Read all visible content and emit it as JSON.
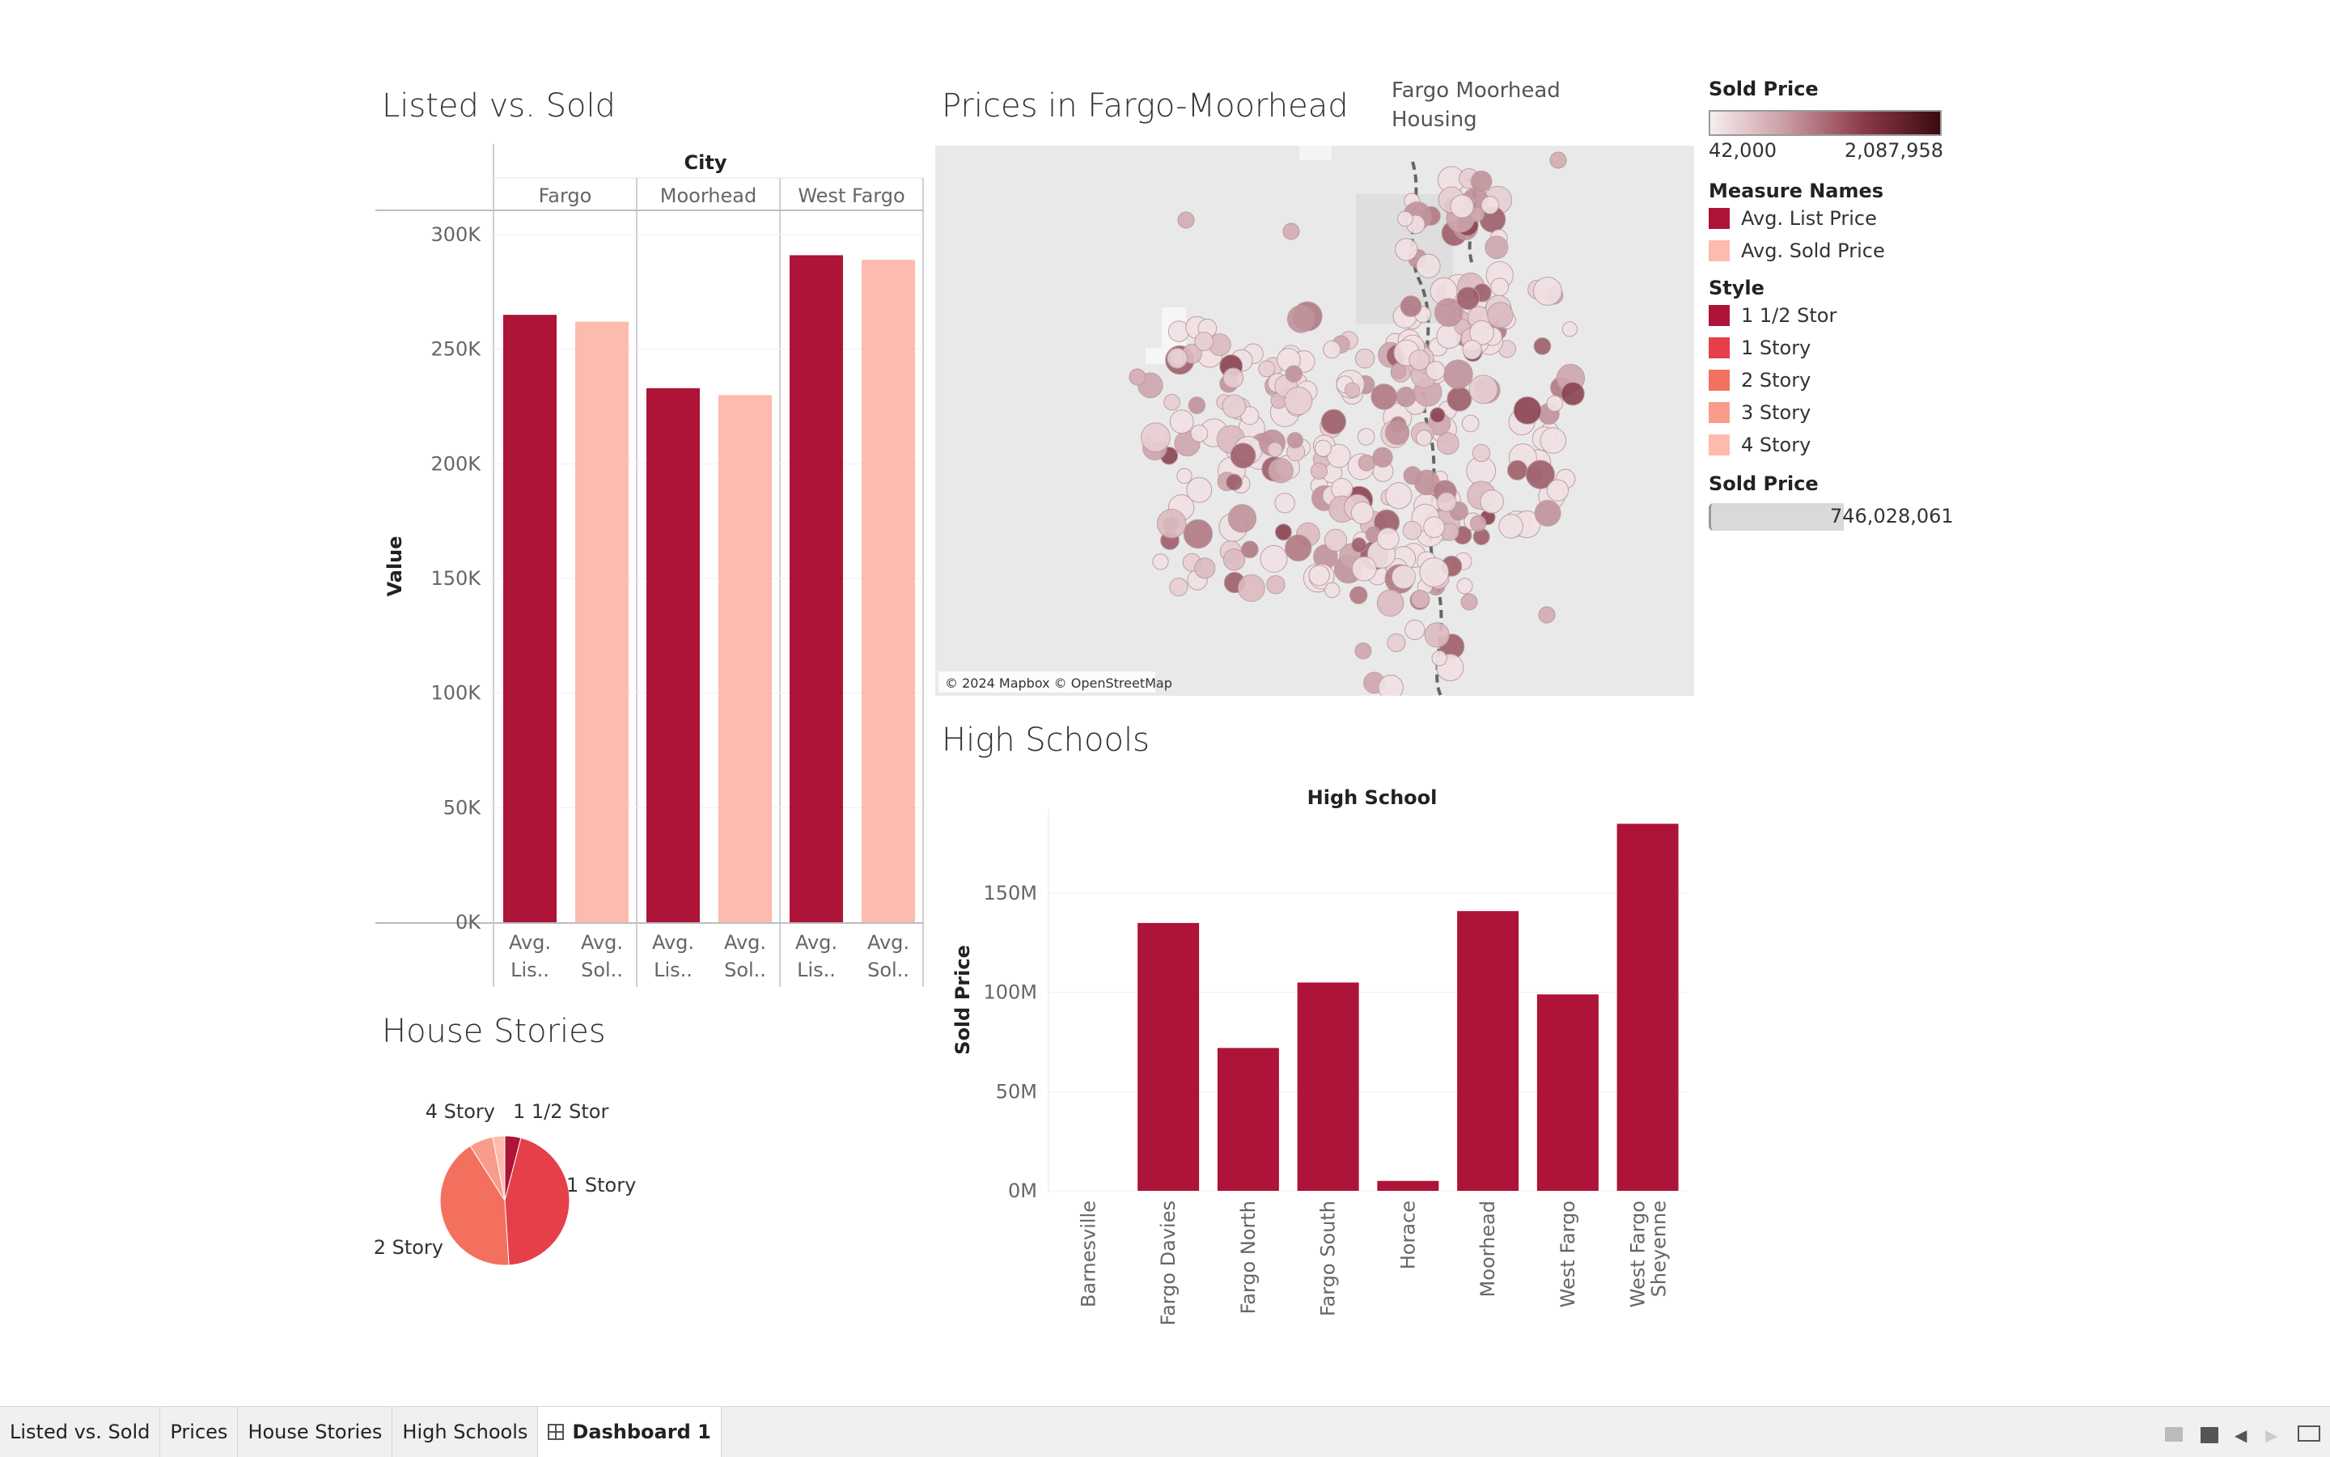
{
  "listed_vs_sold": {
    "title": "Listed vs. Sold",
    "column_header": "City",
    "ylabel": "Value",
    "bar_label_prefix": [
      "Avg.",
      "Avg."
    ],
    "bar_label_suffix": [
      "Lis..",
      "Sol.."
    ]
  },
  "prices_map": {
    "title": "Prices in Fargo-Moorhead",
    "subtitle_line1": "Fargo Moorhead",
    "subtitle_line2": "Housing",
    "attribution": "© 2024 Mapbox © OpenStreetMap"
  },
  "legend": {
    "sold_price_title": "Sold Price",
    "gradient_min": "42,000",
    "gradient_max": "2,087,958",
    "measure_names_title": "Measure Names",
    "measure_names": [
      {
        "label": "Avg. List Price",
        "color": "#ad1438"
      },
      {
        "label": "Avg. Sold Price",
        "color": "#fcbbad"
      }
    ],
    "style_title": "Style",
    "styles": [
      {
        "label": "1 1/2 Stor",
        "color": "#ad1438"
      },
      {
        "label": "1 Story",
        "color": "#e5404a"
      },
      {
        "label": "2 Story",
        "color": "#f4705e"
      },
      {
        "label": "3 Story",
        "color": "#fa9c8b"
      },
      {
        "label": "4 Story",
        "color": "#fcbbad"
      }
    ],
    "sold_price_size_title": "Sold Price",
    "sold_price_size_value": "746,028,061"
  },
  "house_stories": {
    "title": "House Stories"
  },
  "high_schools": {
    "title": "High Schools",
    "column_header": "High School"
  },
  "tabs": [
    "Listed vs. Sold",
    "Prices",
    "House Stories",
    "High Schools",
    "Dashboard 1"
  ],
  "chart_data": [
    {
      "type": "bar",
      "title": "Listed vs. Sold",
      "group_label": "City",
      "categories": [
        "Fargo",
        "Moorhead",
        "West Fargo"
      ],
      "series": [
        {
          "name": "Avg. List Price",
          "values": [
            265000,
            233000,
            291000
          ],
          "color": "#ad1438"
        },
        {
          "name": "Avg. Sold Price",
          "values": [
            262000,
            230000,
            289000
          ],
          "color": "#fcbbad"
        }
      ],
      "ylabel": "Value",
      "ylim": [
        0,
        300000
      ],
      "yticks": [
        0,
        50000,
        100000,
        150000,
        200000,
        250000,
        300000
      ],
      "ytick_labels": [
        "0K",
        "50K",
        "100K",
        "150K",
        "200K",
        "250K",
        "300K"
      ]
    },
    {
      "type": "bar",
      "title": "High Schools",
      "group_label": "High School",
      "categories": [
        "Barnesville",
        "Fargo Davies",
        "Fargo North",
        "Fargo South",
        "Horace",
        "Moorhead",
        "West Fargo",
        "West Fargo Sheyenne"
      ],
      "values": [
        0,
        135000000,
        72000000,
        105000000,
        5000000,
        141000000,
        99000000,
        185000000
      ],
      "color": "#ad1438",
      "ylabel": "Sold Price",
      "ylim": [
        0,
        190000000
      ],
      "yticks": [
        0,
        50000000,
        100000000,
        150000000
      ],
      "ytick_labels": [
        "0M",
        "50M",
        "100M",
        "150M"
      ]
    },
    {
      "type": "pie",
      "title": "House Stories",
      "labels": [
        "1 1/2 Stor",
        "1 Story",
        "2 Story",
        "3 Story",
        "4 Story"
      ],
      "values": [
        4,
        45,
        42,
        6,
        3
      ],
      "colors": [
        "#ad1438",
        "#e5404a",
        "#f4705e",
        "#fa9c8b",
        "#fcbbad"
      ]
    }
  ]
}
